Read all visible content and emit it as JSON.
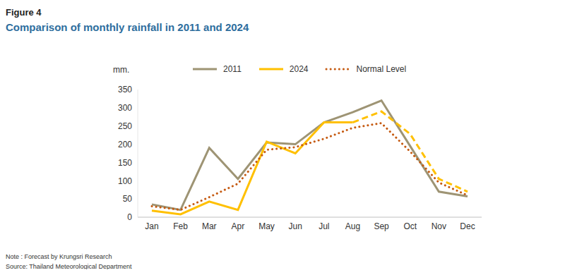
{
  "chart_data": {
    "type": "line",
    "figure_label": "Figure 4",
    "title": "Comparison of monthly rainfall in 2011 and 2024",
    "y_label": "mm.",
    "notes": [
      "Note : Forecast by Krungsri Research",
      "Source: Thailand Meteorological Department"
    ],
    "categories": [
      "Jan",
      "Feb",
      "Mar",
      "Apr",
      "May",
      "Jun",
      "Jul",
      "Aug",
      "Sep",
      "Oct",
      "Nov",
      "Dec"
    ],
    "series": [
      {
        "name": "2011",
        "color": "#9e9474",
        "line_style": "solid",
        "values": [
          35,
          20,
          190,
          105,
          205,
          200,
          260,
          288,
          320,
          195,
          70,
          57
        ]
      },
      {
        "name": "2024",
        "color": "#ffc000",
        "line_style": "solid",
        "values": [
          18,
          8,
          43,
          20,
          207,
          175,
          260,
          260,
          null,
          null,
          null,
          null
        ]
      },
      {
        "name": "2024",
        "color": "#ffc000",
        "line_style": "dashed",
        "values": [
          null,
          null,
          null,
          null,
          null,
          null,
          null,
          260,
          290,
          228,
          105,
          70
        ]
      },
      {
        "name": "Normal Level",
        "color": "#c55a11",
        "line_style": "dotted",
        "values": [
          30,
          20,
          55,
          92,
          185,
          192,
          215,
          245,
          258,
          180,
          95,
          60
        ]
      }
    ],
    "ylim": [
      0,
      350
    ],
    "yticks": [
      0,
      50,
      100,
      150,
      200,
      250,
      300,
      350
    ],
    "grid": false,
    "legend": "top"
  }
}
